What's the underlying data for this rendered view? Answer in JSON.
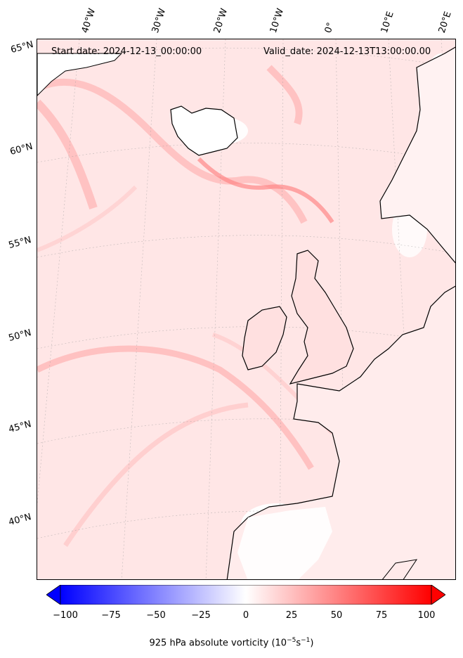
{
  "header": {
    "start_date": "Start date: 2024-12-13_00:00:00",
    "valid_date": "Valid_date: 2024-12-13T13:00:00.00"
  },
  "longitude_labels": [
    "40°W",
    "30°W",
    "20°W",
    "10°W",
    "0°",
    "10°E",
    "20°E"
  ],
  "latitude_labels": [
    "65°N",
    "60°N",
    "55°N",
    "50°N",
    "45°N",
    "40°N"
  ],
  "colorbar": {
    "ticks": [
      "−100",
      "−75",
      "−50",
      "−25",
      "0",
      "25",
      "50",
      "75",
      "100"
    ],
    "label": "925 hPa absolute vorticity (10",
    "label_exp": "−5",
    "label_mid": "s",
    "label_exp2": "−1",
    "label_end": ")",
    "min_color": "#0000ff",
    "mid_color": "#ffffff",
    "max_color": "#ff0000"
  },
  "colors": {
    "background_field": "#ffe9e9",
    "coastline": "#000000",
    "gridline": "#999999"
  }
}
